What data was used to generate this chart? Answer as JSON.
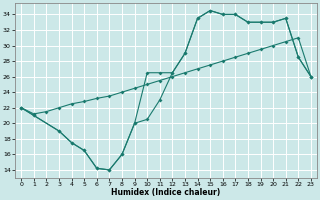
{
  "xlabel": "Humidex (Indice chaleur)",
  "xlim": [
    -0.5,
    23.5
  ],
  "ylim": [
    13,
    35.5
  ],
  "yticks": [
    14,
    16,
    18,
    20,
    22,
    24,
    26,
    28,
    30,
    32,
    34
  ],
  "xticks": [
    0,
    1,
    2,
    3,
    4,
    5,
    6,
    7,
    8,
    9,
    10,
    11,
    12,
    13,
    14,
    15,
    16,
    17,
    18,
    19,
    20,
    21,
    22,
    23
  ],
  "bg_color": "#cce8e8",
  "grid_color": "#ffffff",
  "line_color": "#1a7a6e",
  "line1_x": [
    0,
    1,
    3,
    4,
    5,
    6,
    7,
    8,
    9,
    10,
    11,
    12,
    13,
    14,
    15,
    16,
    17,
    18,
    19,
    20,
    21,
    22,
    23
  ],
  "line1_y": [
    22.0,
    21.0,
    19.0,
    17.5,
    16.5,
    14.2,
    14.0,
    16.0,
    20.0,
    20.5,
    23.0,
    26.5,
    29.0,
    33.5,
    34.5,
    34.0,
    34.0,
    33.0,
    33.0,
    33.0,
    33.5,
    28.5,
    26.0
  ],
  "line2_x": [
    0,
    1,
    3,
    4,
    5,
    6,
    7,
    8,
    9,
    10,
    11,
    12,
    13,
    14,
    15,
    16,
    17,
    18,
    19,
    20,
    21,
    22,
    23
  ],
  "line2_y": [
    22.0,
    21.0,
    19.0,
    17.5,
    16.5,
    14.2,
    14.0,
    16.0,
    20.0,
    26.5,
    26.5,
    26.5,
    29.0,
    33.5,
    34.5,
    34.0,
    34.0,
    33.0,
    33.0,
    33.0,
    33.5,
    28.5,
    26.0
  ],
  "line3_x": [
    0,
    1,
    2,
    3,
    4,
    5,
    6,
    7,
    8,
    9,
    10,
    11,
    12,
    13,
    14,
    15,
    16,
    17,
    18,
    19,
    20,
    21,
    22,
    23
  ],
  "line3_y": [
    22.0,
    21.2,
    21.5,
    22.0,
    22.5,
    22.8,
    23.2,
    23.5,
    24.0,
    24.5,
    25.0,
    25.5,
    26.0,
    26.5,
    27.0,
    27.5,
    28.0,
    28.5,
    29.0,
    29.5,
    30.0,
    30.5,
    31.0,
    26.0
  ]
}
